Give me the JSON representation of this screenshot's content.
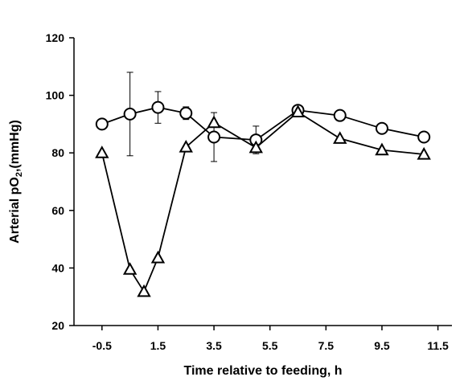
{
  "chart_data": {
    "type": "line",
    "xlabel": "Time relative to feeding, h",
    "ylabel": {
      "text": "Arterial pO",
      "sub": "2",
      "rest": ",(mmHg)"
    },
    "xlim": [
      -1.5,
      12.0
    ],
    "ylim": [
      20,
      120
    ],
    "xticks": [
      -0.5,
      1.5,
      3.5,
      5.5,
      7.5,
      9.5,
      11.5
    ],
    "xtick_labels": [
      "-0.5",
      "1.5",
      "3.5",
      "5.5",
      "7.5",
      "9.5",
      "11.5"
    ],
    "yticks": [
      20,
      40,
      60,
      80,
      100,
      120
    ],
    "ytick_labels": [
      "20",
      "40",
      "60",
      "80",
      "100",
      "120"
    ],
    "grid": false,
    "series": [
      {
        "marker": "circle",
        "x": [
          -0.5,
          0.5,
          1.5,
          2.5,
          3.5,
          5.0,
          6.5,
          8.0,
          9.5,
          11.0
        ],
        "y": [
          90,
          93.5,
          95.8,
          93.8,
          85.5,
          84.5,
          94.8,
          93,
          88.5,
          85.5
        ],
        "err": [
          null,
          14.5,
          5.5,
          2.2,
          8.5,
          4.8,
          null,
          null,
          null,
          null
        ]
      },
      {
        "marker": "triangle",
        "x": [
          -0.5,
          0.5,
          1.0,
          1.5,
          2.5,
          3.5,
          5.0,
          6.5,
          8.0,
          9.5,
          11.0
        ],
        "y": [
          80,
          39.5,
          31.8,
          43.5,
          82,
          90.5,
          81.8,
          94.2,
          85,
          81,
          79.5
        ],
        "err": [
          null,
          null,
          null,
          null,
          null,
          null,
          null,
          null,
          null,
          null,
          null
        ]
      }
    ]
  }
}
